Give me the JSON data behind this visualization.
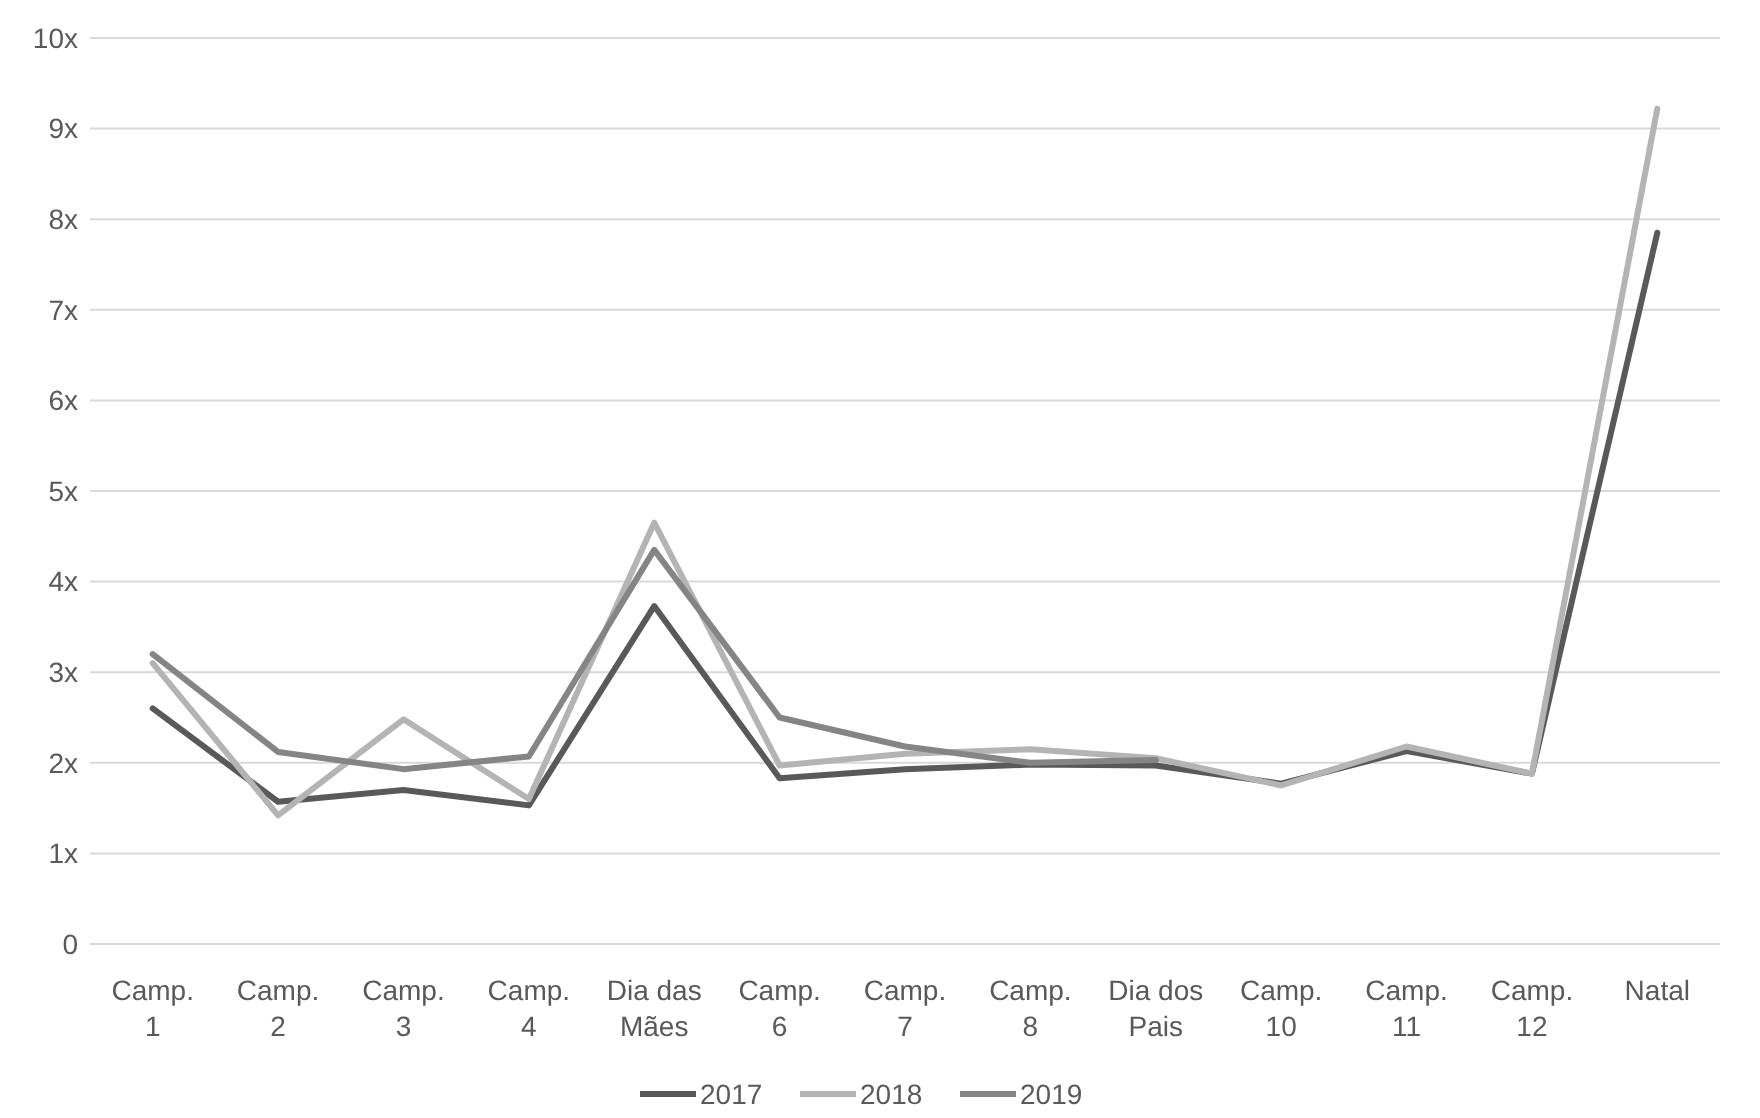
{
  "chart_data": {
    "type": "line",
    "categories": [
      "Camp.\n1",
      "Camp.\n2",
      "Camp.\n3",
      "Camp.\n4",
      "Dia das\nMães",
      "Camp.\n6",
      "Camp.\n7",
      "Camp.\n8",
      "Dia dos\nPais",
      "Camp.\n10",
      "Camp.\n11",
      "Camp.\n12",
      "Natal"
    ],
    "series": [
      {
        "name": "2017",
        "color": "#595959",
        "values": [
          2.6,
          1.57,
          1.7,
          1.53,
          3.73,
          1.83,
          1.93,
          1.98,
          1.97,
          1.77,
          2.13,
          1.88,
          7.85
        ]
      },
      {
        "name": "2018",
        "color": "#b4b4b4",
        "values": [
          3.1,
          1.42,
          2.48,
          1.6,
          4.65,
          1.97,
          2.1,
          2.15,
          2.05,
          1.75,
          2.18,
          1.88,
          9.22
        ]
      },
      {
        "name": "2019",
        "color": "#858585",
        "values": [
          3.2,
          2.12,
          1.93,
          2.07,
          4.35,
          2.5,
          2.18,
          2.0,
          2.03,
          null,
          null,
          null,
          null
        ]
      }
    ],
    "ylim": [
      0,
      10
    ],
    "yticks": [
      0,
      {
        "value": 1,
        "label": "1x"
      },
      {
        "value": 2,
        "label": "2x"
      },
      {
        "value": 3,
        "label": "3x"
      },
      {
        "value": 4,
        "label": "4x"
      },
      {
        "value": 5,
        "label": "5x"
      },
      {
        "value": 6,
        "label": "6x"
      },
      {
        "value": 7,
        "label": "7x"
      },
      {
        "value": 8,
        "label": "8x"
      },
      {
        "value": 9,
        "label": "9x"
      },
      {
        "value": 10,
        "label": "10x"
      }
    ],
    "grid": "y",
    "legend": "bottom",
    "line_style": "solid"
  }
}
